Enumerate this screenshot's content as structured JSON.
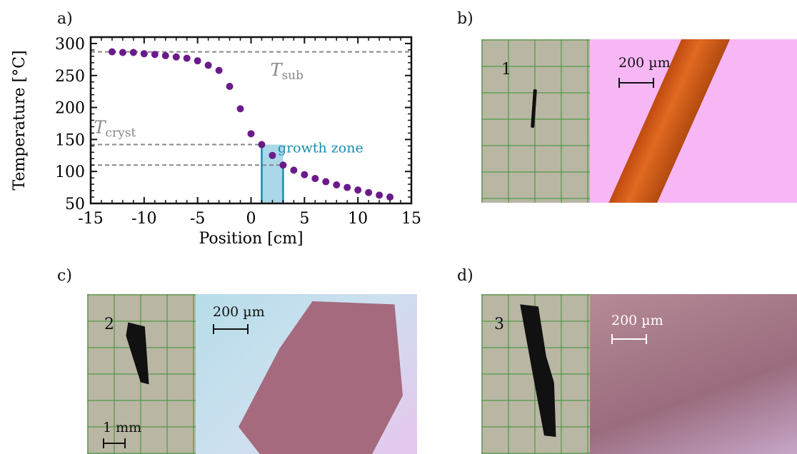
{
  "panels": {
    "a": "a)",
    "b": "b)",
    "c": "c)",
    "d": "d)"
  },
  "chart_data": {
    "type": "scatter",
    "xlabel": "Position [cm]",
    "ylabel": "Temperature [°C]",
    "xlim": [
      -15,
      15
    ],
    "ylim": [
      50,
      310
    ],
    "xticks": [
      -15,
      -10,
      -5,
      0,
      5,
      10,
      15
    ],
    "yticks": [
      50,
      100,
      150,
      200,
      250,
      300
    ],
    "marker_color": "#6a1b8a",
    "points": [
      {
        "x": -13,
        "y": 287
      },
      {
        "x": -12,
        "y": 286
      },
      {
        "x": -11,
        "y": 286
      },
      {
        "x": -10,
        "y": 284
      },
      {
        "x": -9,
        "y": 283
      },
      {
        "x": -8,
        "y": 281
      },
      {
        "x": -7,
        "y": 279
      },
      {
        "x": -6,
        "y": 277
      },
      {
        "x": -5,
        "y": 273
      },
      {
        "x": -4,
        "y": 266
      },
      {
        "x": -3,
        "y": 258
      },
      {
        "x": -2,
        "y": 233
      },
      {
        "x": -1,
        "y": 198
      },
      {
        "x": 0,
        "y": 159
      },
      {
        "x": 1,
        "y": 142
      },
      {
        "x": 2,
        "y": 125
      },
      {
        "x": 3,
        "y": 110
      },
      {
        "x": 4,
        "y": 102
      },
      {
        "x": 5,
        "y": 95
      },
      {
        "x": 6,
        "y": 89
      },
      {
        "x": 7,
        "y": 84
      },
      {
        "x": 8,
        "y": 79
      },
      {
        "x": 9,
        "y": 75
      },
      {
        "x": 10,
        "y": 71
      },
      {
        "x": 11,
        "y": 67
      },
      {
        "x": 12,
        "y": 63
      },
      {
        "x": 13,
        "y": 60
      }
    ],
    "reference_lines": [
      {
        "y": 287,
        "x_start": -15,
        "x_end": 15
      },
      {
        "y": 142,
        "x_start": -15,
        "x_end": 1
      },
      {
        "y": 110,
        "x_start": -15,
        "x_end": 3
      }
    ],
    "reference_line_color": "#888888",
    "annotations": {
      "t_sub": {
        "main": "T",
        "sub": "sub"
      },
      "t_cryst": {
        "main": "T",
        "sub": "cryst"
      },
      "growth_zone": "growth zone"
    },
    "growth_zone": {
      "x_start": 1,
      "x_end": 3,
      "color": "#1a8ab0",
      "fill": "#a9d8e8"
    }
  },
  "photos": {
    "b": {
      "number": "1",
      "scalebar": "200 µm"
    },
    "c": {
      "number": "2",
      "scalebar": "200 µm",
      "scalebar_mm": "1 mm"
    },
    "d": {
      "number": "3",
      "scalebar": "200 µm"
    }
  }
}
